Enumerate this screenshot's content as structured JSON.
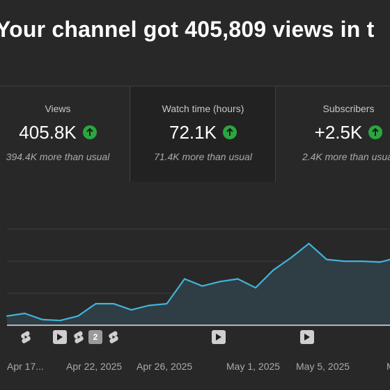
{
  "headline": "Your channel got 405,809 views in t",
  "cards": [
    {
      "label": "Views",
      "value": "405.8K",
      "sub": "394.4K more than usual",
      "trend_icon": "arrow-up-icon"
    },
    {
      "label": "Watch time (hours)",
      "value": "72.1K",
      "sub": "71.4K more than usual",
      "trend_icon": "arrow-up-icon"
    },
    {
      "label": "Subscribers",
      "value": "+2.5K",
      "sub": "2.4K more than usual",
      "trend_icon": "arrow-up-icon"
    }
  ],
  "colors": {
    "background": "#282828",
    "selected_card": "#222222",
    "trend_up": "#2ba640",
    "line": "#41b4d9",
    "area": "#2f3d44"
  },
  "markers": [
    {
      "type": "shorts",
      "label": ""
    },
    {
      "type": "video",
      "label": ""
    },
    {
      "type": "shorts",
      "label": ""
    },
    {
      "type": "count",
      "label": "2"
    },
    {
      "type": "shorts",
      "label": ""
    },
    {
      "type": "video",
      "label": ""
    },
    {
      "type": "video",
      "label": ""
    }
  ],
  "chart_data": {
    "type": "area",
    "x_tick_labels": [
      "Apr 17...",
      "Apr 22, 2025",
      "Apr 26, 2025",
      "May 1, 2025",
      "May 5, 2025",
      "M"
    ],
    "y_relative": [
      0.08,
      0.11,
      0.04,
      0.03,
      0.08,
      0.22,
      0.22,
      0.15,
      0.2,
      0.22,
      0.5,
      0.42,
      0.47,
      0.5,
      0.4,
      0.6,
      0.74,
      0.9,
      0.72,
      0.7,
      0.7,
      0.69,
      0.74
    ],
    "grid": true,
    "legend": "none"
  }
}
